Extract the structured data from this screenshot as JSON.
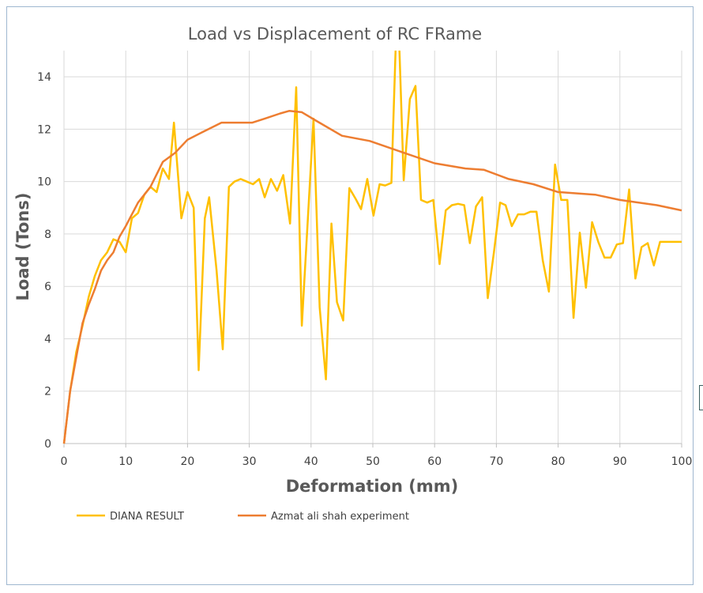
{
  "chart_data": {
    "type": "line",
    "title": "Load vs Displacement of RC FRame",
    "xlabel": "Deformation (mm)",
    "ylabel": "Load (Tons)",
    "xlim": [
      0,
      100
    ],
    "ylim": [
      0,
      15
    ],
    "xticks": [
      0,
      10,
      20,
      30,
      40,
      50,
      60,
      70,
      80,
      90,
      100
    ],
    "yticks": [
      0,
      2,
      4,
      6,
      8,
      10,
      12,
      14
    ],
    "grid": true,
    "legend_position": "bottom-left",
    "series": [
      {
        "name": "DIANA RESULT",
        "color": "#ffc000",
        "points": [
          [
            0,
            0
          ],
          [
            1,
            2
          ],
          [
            2,
            3.5
          ],
          [
            3,
            4.5
          ],
          [
            4,
            5.6
          ],
          [
            5,
            6.4
          ],
          [
            6,
            7
          ],
          [
            7,
            7.3
          ],
          [
            8,
            7.8
          ],
          [
            9,
            7.7
          ],
          [
            10,
            7.3
          ],
          [
            11,
            8.6
          ],
          [
            12,
            8.8
          ],
          [
            13,
            9.5
          ],
          [
            14,
            9.8
          ],
          [
            15,
            9.6
          ],
          [
            16,
            10.5
          ],
          [
            17,
            10.1
          ],
          [
            17.8,
            12.25
          ],
          [
            19,
            8.6
          ],
          [
            20,
            9.6
          ],
          [
            21,
            9
          ],
          [
            21.8,
            2.8
          ],
          [
            22.8,
            8.6
          ],
          [
            23.5,
            9.4
          ],
          [
            24.7,
            6.6
          ],
          [
            25.7,
            3.6
          ],
          [
            26.7,
            9.8
          ],
          [
            27.6,
            10
          ],
          [
            28.6,
            10.1
          ],
          [
            29.6,
            10
          ],
          [
            30.6,
            9.9
          ],
          [
            31.6,
            10.1
          ],
          [
            32.5,
            9.4
          ],
          [
            33.5,
            10.1
          ],
          [
            34.5,
            9.65
          ],
          [
            35.5,
            10.25
          ],
          [
            36.6,
            8.4
          ],
          [
            37.6,
            13.6
          ],
          [
            38.5,
            4.5
          ],
          [
            40.4,
            12.4
          ],
          [
            41.4,
            5.2
          ],
          [
            42.4,
            2.45
          ],
          [
            43.3,
            8.4
          ],
          [
            44.2,
            5.4
          ],
          [
            45.2,
            4.7
          ],
          [
            46.2,
            9.75
          ],
          [
            47.2,
            9.35
          ],
          [
            48.1,
            8.95
          ],
          [
            49.1,
            10.1
          ],
          [
            50.1,
            8.7
          ],
          [
            51.1,
            9.9
          ],
          [
            52,
            9.85
          ],
          [
            53,
            9.95
          ],
          [
            53.7,
            15.1
          ],
          [
            54.3,
            15.1
          ],
          [
            55,
            10.05
          ],
          [
            56,
            13.15
          ],
          [
            56.9,
            13.65
          ],
          [
            57.8,
            9.3
          ],
          [
            58.8,
            9.2
          ],
          [
            59.8,
            9.3
          ],
          [
            60.8,
            6.85
          ],
          [
            61.8,
            8.9
          ],
          [
            62.8,
            9.1
          ],
          [
            63.8,
            9.15
          ],
          [
            64.8,
            9.1
          ],
          [
            65.7,
            7.65
          ],
          [
            66.7,
            9.05
          ],
          [
            67.7,
            9.4
          ],
          [
            68.6,
            5.55
          ],
          [
            69.6,
            7.3
          ],
          [
            70.6,
            9.2
          ],
          [
            71.5,
            9.1
          ],
          [
            72.5,
            8.3
          ],
          [
            73.5,
            8.75
          ],
          [
            74.5,
            8.75
          ],
          [
            75.5,
            8.85
          ],
          [
            76.5,
            8.85
          ],
          [
            77.5,
            7
          ],
          [
            78.5,
            5.8
          ],
          [
            79.5,
            10.65
          ],
          [
            80.5,
            9.3
          ],
          [
            81.5,
            9.3
          ],
          [
            82.5,
            4.8
          ],
          [
            83.5,
            8.05
          ],
          [
            84.5,
            5.95
          ],
          [
            85.5,
            8.45
          ],
          [
            86.5,
            7.7
          ],
          [
            87.5,
            7.1
          ],
          [
            88.5,
            7.1
          ],
          [
            89.5,
            7.6
          ],
          [
            90.5,
            7.65
          ],
          [
            91.5,
            9.7
          ],
          [
            92.5,
            6.3
          ],
          [
            93.5,
            7.5
          ],
          [
            94.5,
            7.65
          ],
          [
            95.5,
            6.8
          ],
          [
            96.5,
            7.7
          ],
          [
            100,
            7.7
          ]
        ]
      },
      {
        "name": "Azmat ali shah experiment",
        "color": "#ed7d31",
        "points": [
          [
            0,
            0
          ],
          [
            1,
            2
          ],
          [
            2,
            3.3
          ],
          [
            3,
            4.6
          ],
          [
            4,
            5.3
          ],
          [
            5,
            5.9
          ],
          [
            6,
            6.6
          ],
          [
            7,
            7
          ],
          [
            8,
            7.3
          ],
          [
            9,
            7.9
          ],
          [
            10,
            8.3
          ],
          [
            12,
            9.2
          ],
          [
            14,
            9.8
          ],
          [
            16,
            10.75
          ],
          [
            18,
            11.1
          ],
          [
            20,
            11.6
          ],
          [
            22.5,
            11.9
          ],
          [
            25.5,
            12.25
          ],
          [
            28,
            12.25
          ],
          [
            30.5,
            12.25
          ],
          [
            32.5,
            12.4
          ],
          [
            35,
            12.6
          ],
          [
            36.5,
            12.7
          ],
          [
            38.5,
            12.65
          ],
          [
            41,
            12.3
          ],
          [
            45,
            11.75
          ],
          [
            49.5,
            11.55
          ],
          [
            55,
            11.1
          ],
          [
            60,
            10.7
          ],
          [
            65,
            10.5
          ],
          [
            68,
            10.45
          ],
          [
            72,
            10.1
          ],
          [
            76,
            9.9
          ],
          [
            80,
            9.6
          ],
          [
            86,
            9.5
          ],
          [
            90,
            9.3
          ],
          [
            96,
            9.1
          ],
          [
            100,
            8.9
          ]
        ]
      }
    ]
  }
}
